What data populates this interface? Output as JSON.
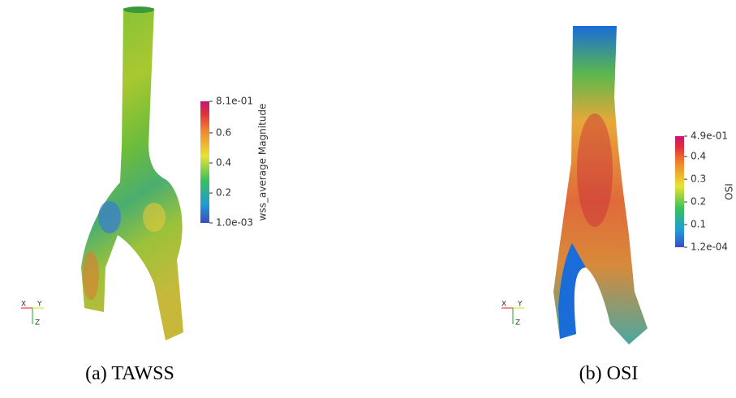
{
  "panels": [
    {
      "caption": "(a) TAWSS",
      "colorbar": {
        "title": "wss_average Magnitude",
        "range": [
          0.001,
          0.81
        ],
        "ticks": [
          {
            "value": 0.81,
            "label": "8.1e-01"
          },
          0.6,
          0.4,
          0.2,
          {
            "value": 0.001,
            "label": "1.0e-03"
          }
        ]
      },
      "axes": {
        "x": "X",
        "y": "Y",
        "z": "Z"
      }
    },
    {
      "caption": "(b) OSI",
      "colorbar": {
        "title": "OSI",
        "range": [
          0.00012,
          0.49
        ],
        "ticks": [
          {
            "value": 0.49,
            "label": "4.9e-01"
          },
          0.4,
          0.3,
          0.2,
          0.1,
          {
            "value": 0.00012,
            "label": "1.2e-04"
          }
        ]
      },
      "axes": {
        "x": "X",
        "y": "Y",
        "z": "Z"
      }
    }
  ]
}
